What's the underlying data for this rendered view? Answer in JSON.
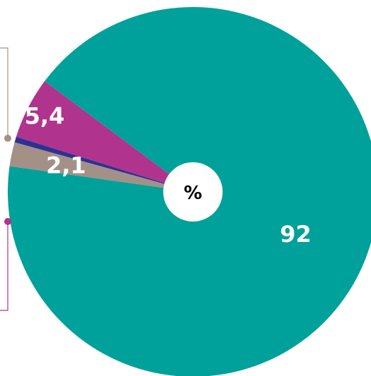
{
  "chart_data": {
    "type": "pie",
    "center_label": "%",
    "slices": [
      {
        "label": "92",
        "value": 92,
        "color": "#00A19A"
      },
      {
        "label": "5,4",
        "value": 5.4,
        "color": "#B0348E"
      },
      {
        "label": "",
        "value": 0.5,
        "color": "#2E3192"
      },
      {
        "label": "2,1",
        "value": 2.1,
        "color": "#A39087"
      }
    ],
    "connector_colors": {
      "upper": "#A39087",
      "lower": "#B0348E"
    },
    "legend": "none",
    "grid": false
  }
}
